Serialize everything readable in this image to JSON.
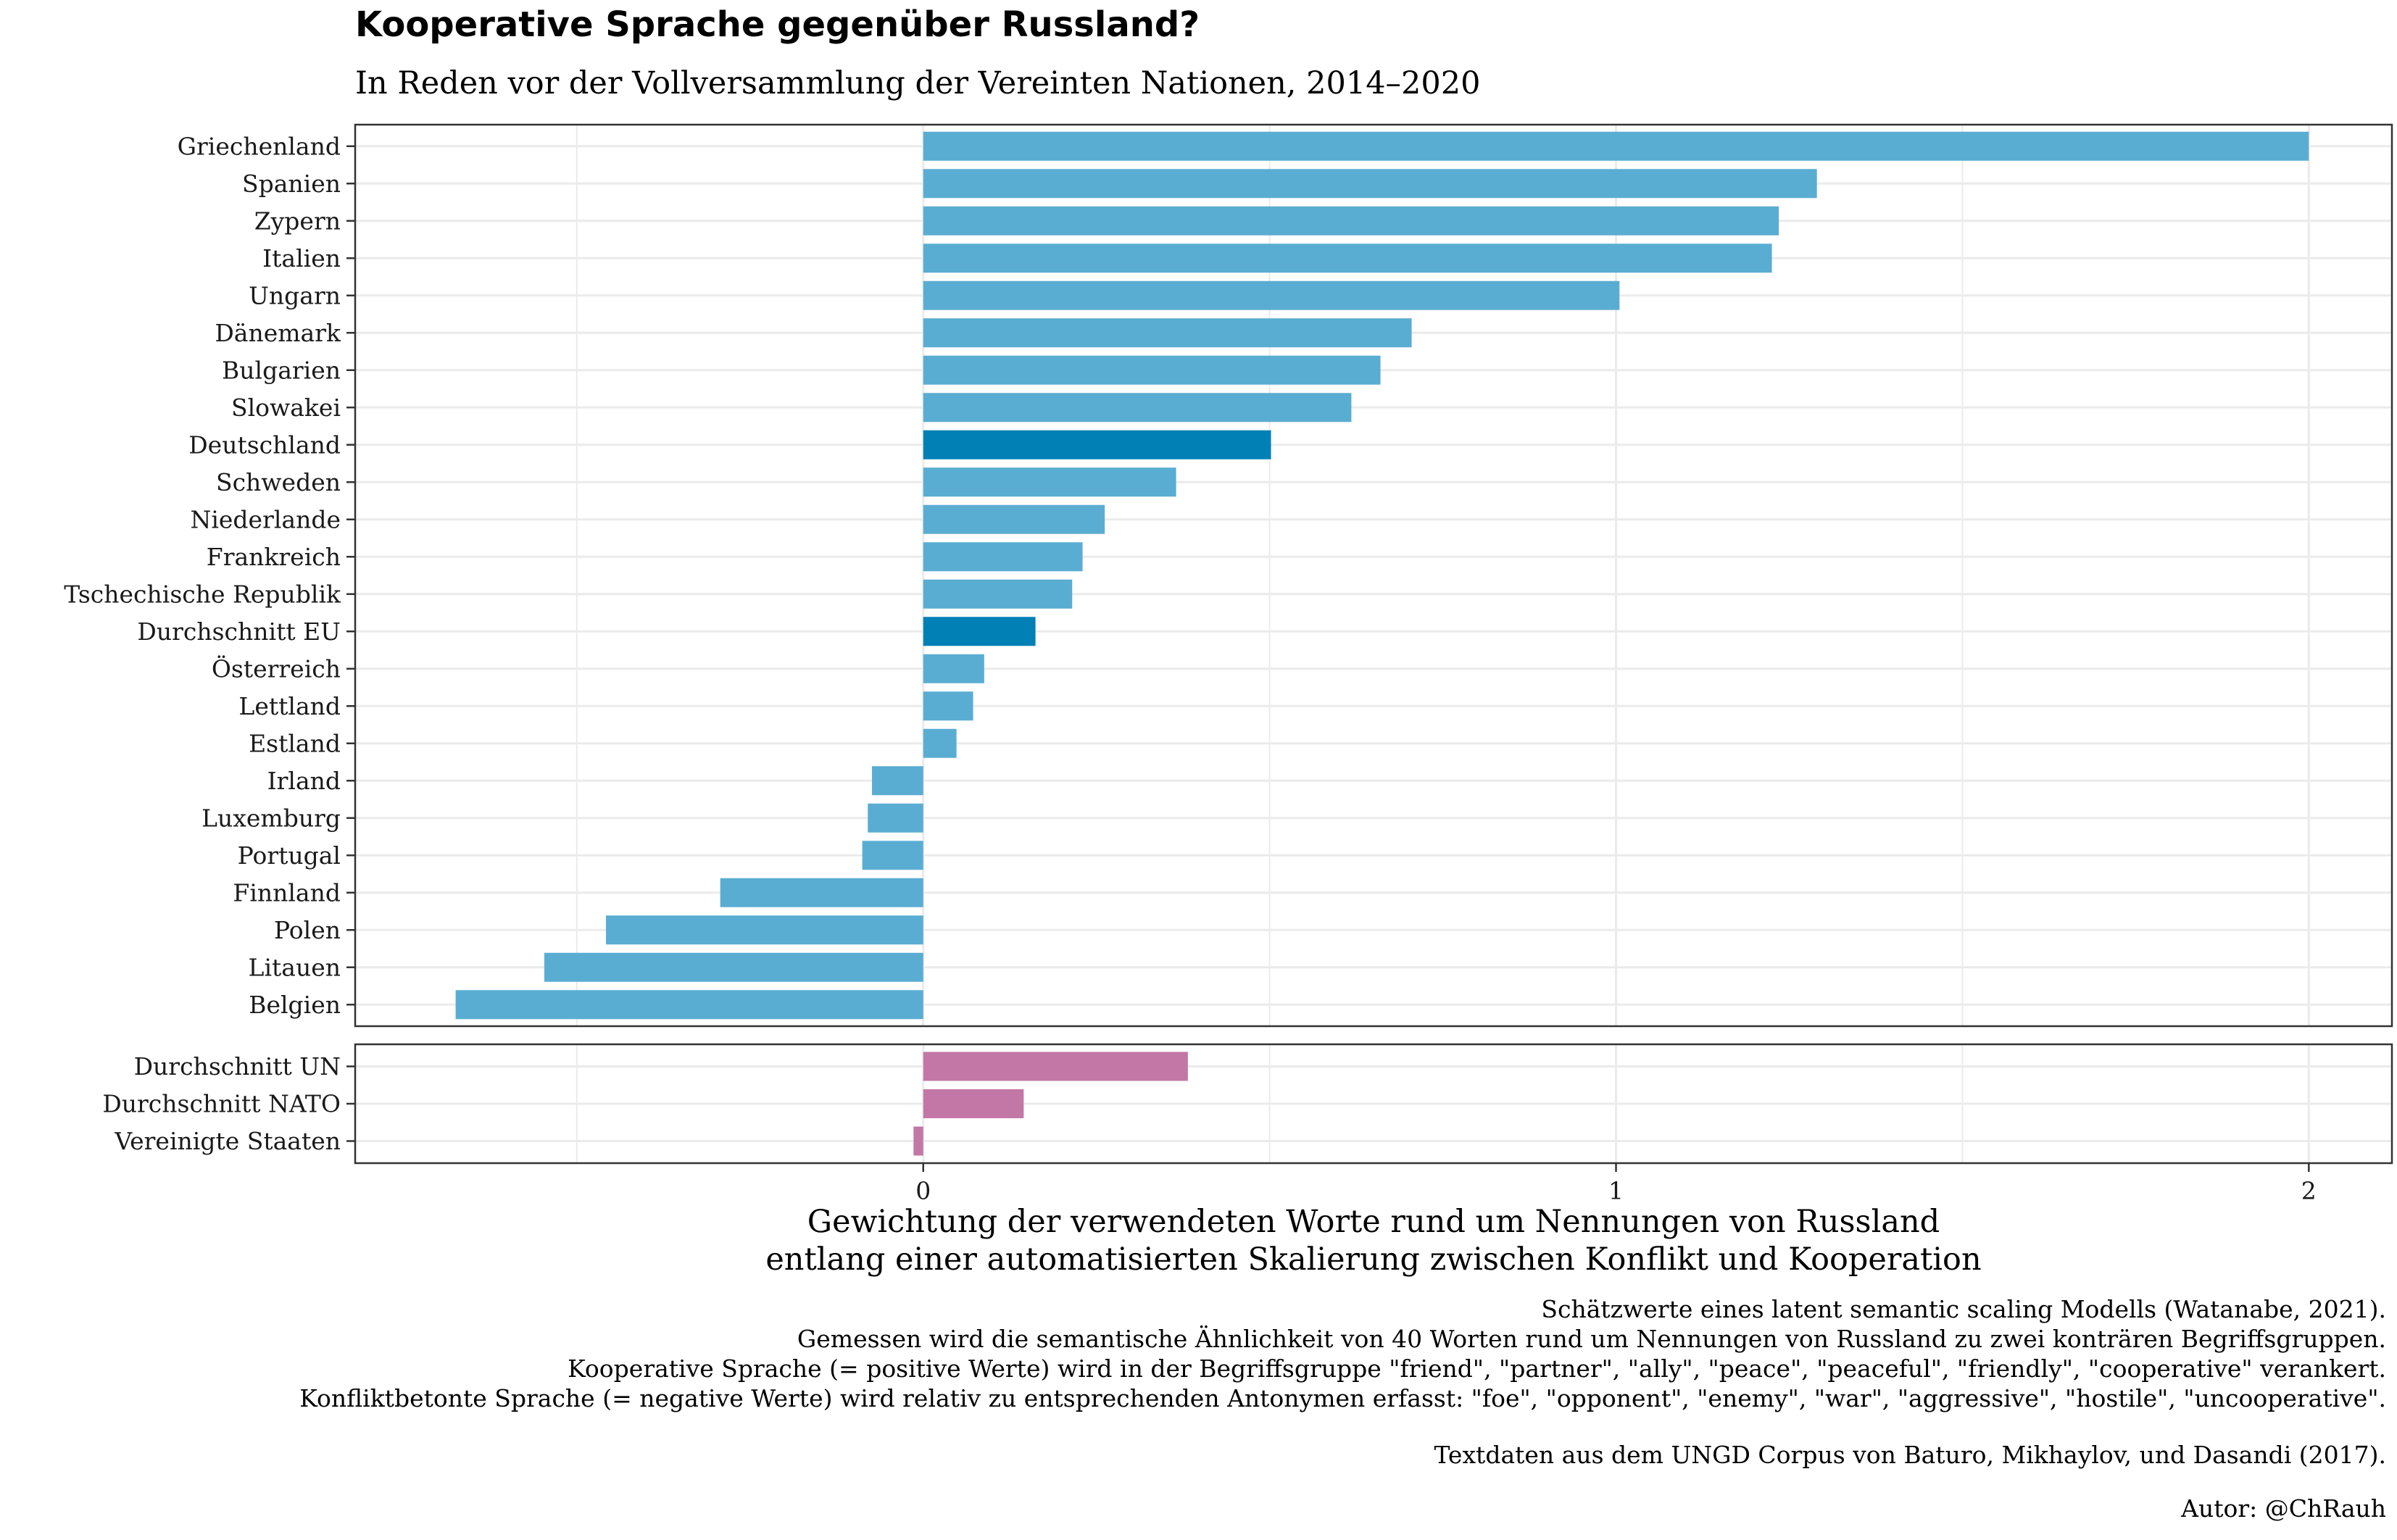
{
  "title": "Kooperative Sprache gegenüber Russland?",
  "subtitle": "In Reden vor der Vollversammlung der Vereinten Nationen, 2014–2020",
  "x_axis_title_line1": "Gewichtung der verwendeten Worte rund um Nennungen von Russland",
  "x_axis_title_line2": "entlang einer automatisierten Skalierung zwischen Konflikt und Kooperation",
  "caption": [
    "Schätzwerte eines latent semantic scaling Modells (Watanabe, 2021).",
    "Gemessen wird die semantische Ähnlichkeit von 40 Worten rund um Nennungen von Russland zu zwei konträren Begriffsgruppen.",
    "Kooperative Sprache (= positive Werte) wird in der Begriffsgruppe \"friend\", \"partner\", \"ally\", \"peace\", \"peaceful\",  \"friendly\", \"cooperative\" verankert.",
    "Konfliktbetonte Sprache (= negative Werte) wird relativ zu entsprechenden Antonymen erfasst: \"foe\", \"opponent\", \"enemy\", \"war\", \"aggressive\", \"hostile\", \"uncooperative\".",
    "",
    "Textdaten aus dem UNGD Corpus von Baturo, Mikhaylov, und Dasandi (2017)."
  ],
  "author": "Autor: @ChRauh",
  "colors": {
    "eu_bar": "#5aadd2",
    "highlight_bar": "#0080b5",
    "other_bar": "#c377a6",
    "grid": "#ebebeb",
    "panel_border": "#333333"
  },
  "chart_data": {
    "type": "bar",
    "orientation": "horizontal",
    "xlim": [
      -0.82,
      2.12
    ],
    "x_ticks": [
      0,
      1,
      2
    ],
    "x_tick_labels": [
      "0",
      "1",
      "2"
    ],
    "grid": true,
    "panels": [
      {
        "categories": [
          "Griechenland",
          "Spanien",
          "Zypern",
          "Italien",
          "Ungarn",
          "Dänemark",
          "Bulgarien",
          "Slowakei",
          "Deutschland",
          "Schweden",
          "Niederlande",
          "Frankreich",
          "Tschechische Republik",
          "Durchschnitt EU",
          "Österreich",
          "Lettland",
          "Estland",
          "Irland",
          "Luxemburg",
          "Portugal",
          "Finnland",
          "Polen",
          "Litauen",
          "Belgien"
        ],
        "values": [
          2.0,
          1.29,
          1.235,
          1.225,
          1.005,
          0.705,
          0.66,
          0.618,
          0.502,
          0.365,
          0.262,
          0.23,
          0.215,
          0.162,
          0.088,
          0.072,
          0.048,
          -0.074,
          -0.08,
          -0.088,
          -0.293,
          -0.458,
          -0.547,
          -0.675
        ],
        "highlight": [
          "Deutschland",
          "Durchschnitt EU"
        ]
      },
      {
        "categories": [
          "Durchschnitt UN",
          "Durchschnitt NATO",
          "Vereinigte Staaten"
        ],
        "values": [
          0.382,
          0.145,
          -0.014
        ]
      }
    ]
  }
}
